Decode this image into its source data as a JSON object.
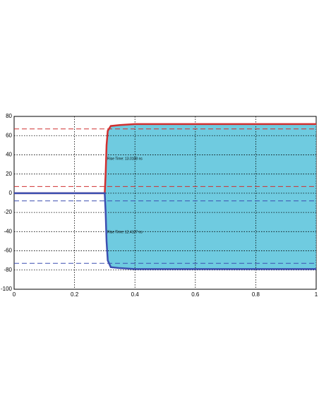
{
  "chart_data": {
    "type": "line",
    "x": [
      0,
      0.2,
      0.3,
      0.303,
      0.306,
      0.31,
      0.32,
      0.35,
      0.4,
      0.6,
      0.8,
      1
    ],
    "series": [
      {
        "color": "#d03030",
        "values": [
          0,
          0,
          0,
          20,
          50,
          65,
          70,
          71,
          72,
          72,
          72,
          72
        ]
      },
      {
        "color": "#3c4fb0",
        "values": [
          0,
          0,
          0,
          -20,
          -50,
          -70,
          -77,
          -78,
          -79,
          -79,
          -79,
          -79
        ]
      }
    ],
    "fill_color": "#6fcbe0",
    "hlines": [
      {
        "value": 67,
        "color": "#d03030"
      },
      {
        "value": 7,
        "color": "#d03030"
      },
      {
        "value": -8,
        "color": "#3c4fb0"
      },
      {
        "value": -73,
        "color": "#3c4fb0"
      }
    ],
    "annotations": [
      "Rise Time: 13.0108 ns",
      "Rise Time: 12.4127 ns"
    ],
    "xlim": [
      0,
      1
    ],
    "xticks": [
      0,
      0.2,
      0.4,
      0.6,
      0.8,
      1
    ],
    "ylim": [
      -100,
      80
    ],
    "yticks": [
      -100,
      -80,
      -60,
      -40,
      -20,
      0,
      20,
      40,
      60,
      80
    ],
    "grid": true
  }
}
